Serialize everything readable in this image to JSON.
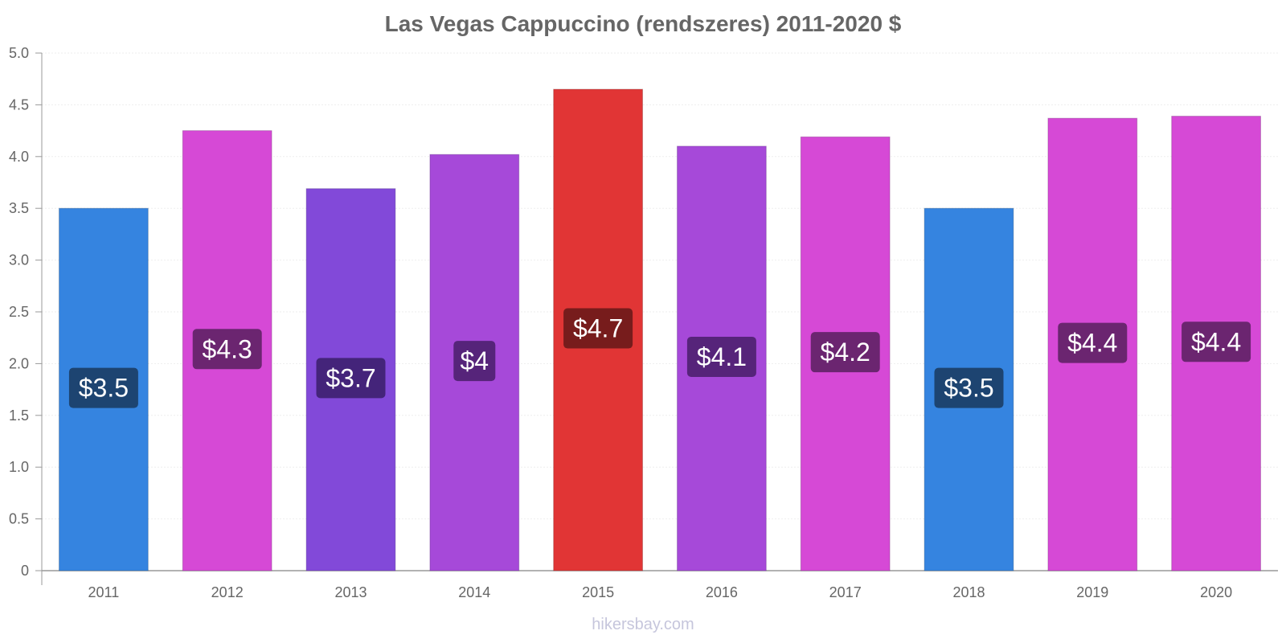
{
  "chart_data": {
    "type": "bar",
    "title": "Las Vegas Cappuccino (rendszeres) 2011-2020 $",
    "xlabel": "",
    "ylabel": "",
    "ylim": [
      0,
      5.0
    ],
    "yticks": [
      "0",
      "0.5",
      "1.0",
      "1.5",
      "2.0",
      "2.5",
      "3.0",
      "3.5",
      "4.0",
      "4.5",
      "5.0"
    ],
    "categories": [
      "2011",
      "2012",
      "2013",
      "2014",
      "2015",
      "2016",
      "2017",
      "2018",
      "2019",
      "2020"
    ],
    "values": [
      3.5,
      4.25,
      3.69,
      4.02,
      4.65,
      4.1,
      4.19,
      3.5,
      4.37,
      4.39
    ],
    "data_labels": [
      "$3.5",
      "$4.3",
      "$3.7",
      "$4",
      "$4.7",
      "$4.1",
      "$4.2",
      "$3.5",
      "$4.4",
      "$4.4"
    ],
    "bar_colors": [
      "#3584e0",
      "#d649d6",
      "#8249d9",
      "#a649d9",
      "#e13535",
      "#a649d9",
      "#d649d6",
      "#3584e0",
      "#d649d6",
      "#d649d6"
    ],
    "label_box_colors": [
      "#1d4471",
      "#6b2570",
      "#44247a",
      "#56247a",
      "#771c1c",
      "#56247a",
      "#6b2570",
      "#1d4471",
      "#6b2570",
      "#6b2570"
    ],
    "grid": true,
    "legend": "none"
  },
  "watermark": "hikersbay.com"
}
